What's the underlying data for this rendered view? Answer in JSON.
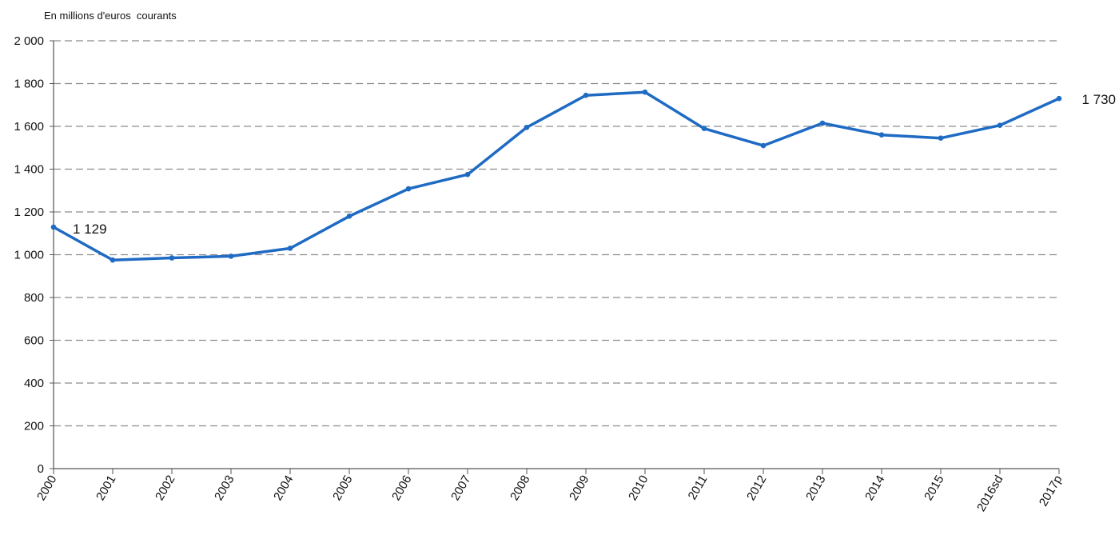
{
  "chart_data": {
    "type": "line",
    "ylabel": "En millions d'euros  courants",
    "categories": [
      "2000",
      "2001",
      "2002",
      "2003",
      "2004",
      "2005",
      "2006",
      "2007",
      "2008",
      "2009",
      "2010",
      "2011",
      "2012",
      "2013",
      "2014",
      "2015",
      "2016sd",
      "2017p"
    ],
    "series": [
      {
        "values": [
          1129,
          975,
          985,
          993,
          1030,
          1180,
          1308,
          1375,
          1595,
          1745,
          1760,
          1590,
          1510,
          1615,
          1560,
          1545,
          1605,
          1730
        ],
        "color": "#1f6bc4"
      }
    ],
    "ylim": [
      0,
      2000
    ],
    "yticks": [
      0,
      200,
      400,
      600,
      800,
      1000,
      1200,
      1400,
      1600,
      1800,
      2000
    ],
    "ytick_labels": [
      "0",
      "200",
      "400",
      "600",
      "800",
      "1 000",
      "1 200",
      "1 400",
      "1 600",
      "1 800",
      "2 000"
    ],
    "data_labels": [
      {
        "index": 0,
        "text": "1 129"
      },
      {
        "index": 17,
        "text": "1 730"
      }
    ],
    "grid": true,
    "legend": "none"
  }
}
